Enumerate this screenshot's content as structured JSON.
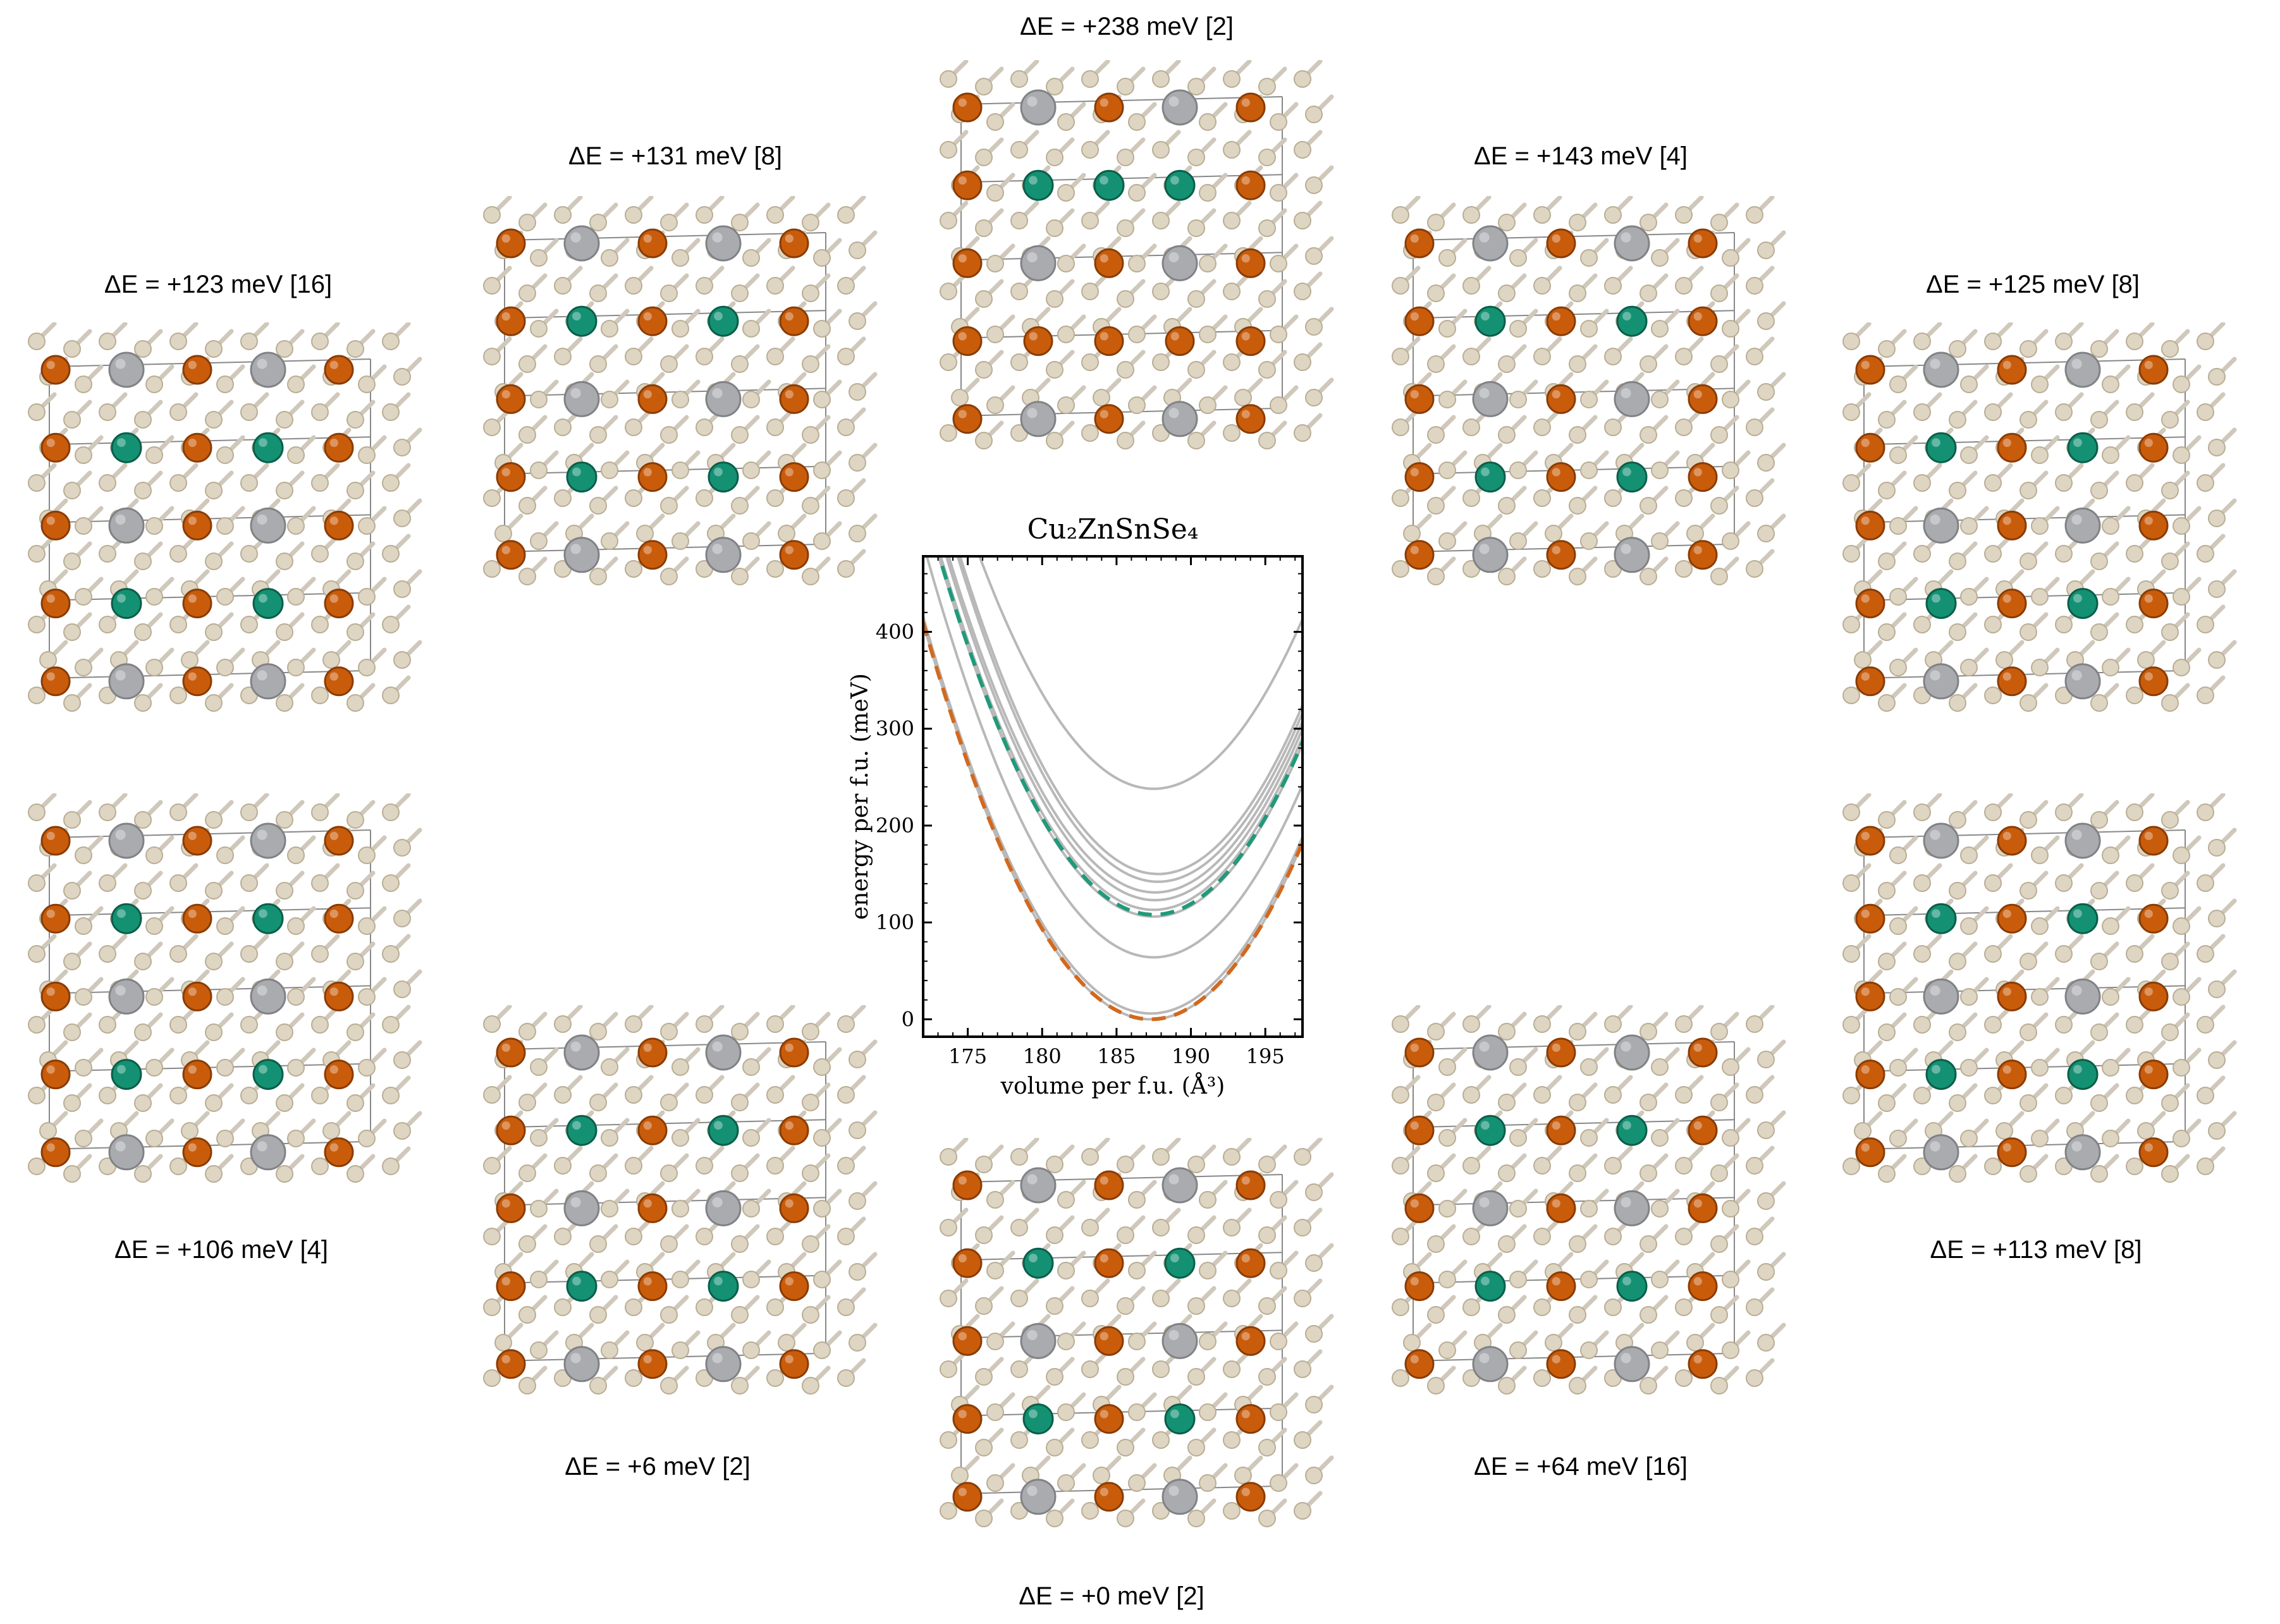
{
  "colors": {
    "cu": "#c95c0b",
    "zn": "#149173",
    "sn": "#a9abaf",
    "se": "#ded5c2",
    "bond": "#cfc8bb",
    "grey_curve": "#b8b8b8",
    "zn_curve": "#1f9a7a",
    "cu_curve": "#d2691e"
  },
  "panels": [
    {
      "id": "top-center",
      "label": "ΔE = +238 meV [2]",
      "zn_rows": [
        1
      ]
    },
    {
      "id": "upper-left",
      "label": "ΔE = +131 meV [8]",
      "zn_rows": [
        1,
        3
      ]
    },
    {
      "id": "upper-right",
      "label": "ΔE = +143 meV [4]",
      "zn_rows": [
        1,
        3
      ]
    },
    {
      "id": "far-left-top",
      "label": "ΔE = +123 meV [16]",
      "zn_rows": [
        1,
        3
      ]
    },
    {
      "id": "far-right-top",
      "label": "ΔE = +125 meV [8]",
      "zn_rows": [
        1,
        3
      ]
    },
    {
      "id": "far-left-bot",
      "label": "ΔE = +106 meV [4]",
      "zn_rows": [
        1,
        3
      ]
    },
    {
      "id": "far-right-bot",
      "label": "ΔE = +113 meV [8]",
      "zn_rows": [
        1,
        3
      ]
    },
    {
      "id": "lower-left",
      "label": "ΔE = +6 meV [2]",
      "zn_rows": [
        1,
        3
      ]
    },
    {
      "id": "lower-right",
      "label": "ΔE = +64 meV [16]",
      "zn_rows": [
        1,
        3
      ]
    },
    {
      "id": "bottom-center",
      "label": "ΔE = +0 meV [2]",
      "zn_rows": [
        1,
        3
      ]
    }
  ],
  "chart_data": {
    "type": "line",
    "title": "Cu₂ZnSnSe₄",
    "xlabel": "volume per f.u. (Å³)",
    "ylabel": "energy per f.u. (meV)",
    "xlim": [
      172,
      197.5
    ],
    "ylim": [
      -18,
      478
    ],
    "xticks": [
      175,
      180,
      185,
      190,
      195
    ],
    "yticks": [
      0,
      100,
      200,
      300,
      400
    ],
    "series": [
      {
        "e0": 238,
        "v0": 187.5,
        "c": 1.75,
        "style": "grey"
      },
      {
        "e0": 150,
        "v0": 187.8,
        "c": 1.85,
        "style": "grey"
      },
      {
        "e0": 142,
        "v0": 187.8,
        "c": 1.85,
        "style": "grey"
      },
      {
        "e0": 131,
        "v0": 187.6,
        "c": 1.8,
        "style": "grey"
      },
      {
        "e0": 123,
        "v0": 187.6,
        "c": 1.8,
        "style": "grey"
      },
      {
        "e0": 113,
        "v0": 187.5,
        "c": 1.78,
        "style": "grey"
      },
      {
        "e0": 106,
        "v0": 187.5,
        "c": 1.78,
        "style": "grey"
      },
      {
        "e0": 108,
        "v0": 187.5,
        "c": 1.78,
        "style": "zn-dashed"
      },
      {
        "e0": 64,
        "v0": 187.5,
        "c": 1.78,
        "style": "grey"
      },
      {
        "e0": 6,
        "v0": 187.3,
        "c": 1.75,
        "style": "grey"
      },
      {
        "e0": 0,
        "v0": 187.3,
        "c": 1.75,
        "style": "grey"
      },
      {
        "e0": 0,
        "v0": 187.3,
        "c": 1.75,
        "style": "cu-dashed"
      }
    ]
  }
}
